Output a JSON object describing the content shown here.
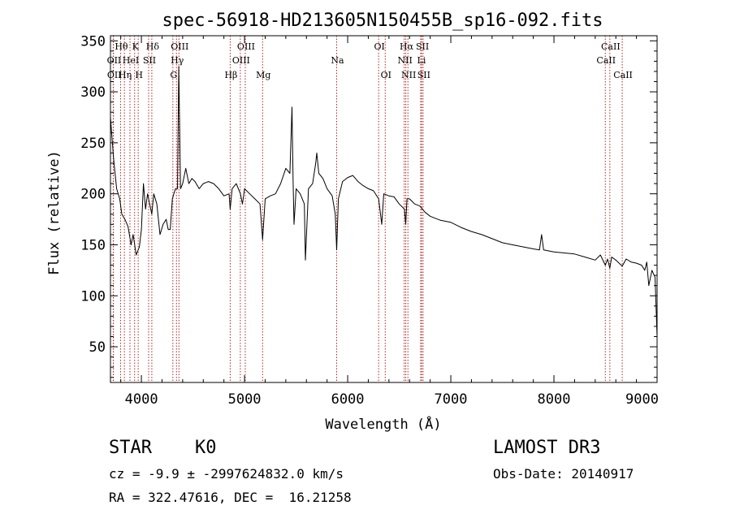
{
  "chart_data": {
    "type": "line",
    "title": "spec-56918-HD213605N150455B_sp16-092.fits",
    "xlabel": "Wavelength (Å)",
    "ylabel": "Flux (relative)",
    "xlim": [
      3700,
      9000
    ],
    "ylim": [
      15,
      355
    ],
    "xticks": [
      4000,
      5000,
      6000,
      7000,
      8000,
      9000
    ],
    "yticks": [
      50,
      100,
      150,
      200,
      250,
      300,
      350
    ],
    "series": [
      {
        "name": "flux",
        "x": [
          3700,
          3730,
          3760,
          3790,
          3810,
          3840,
          3870,
          3900,
          3920,
          3950,
          3980,
          4000,
          4020,
          4040,
          4060,
          4080,
          4101,
          4120,
          4150,
          4180,
          4210,
          4240,
          4260,
          4280,
          4300,
          4330,
          4350,
          4362,
          4380,
          4400,
          4430,
          4460,
          4490,
          4520,
          4560,
          4600,
          4650,
          4700,
          4750,
          4800,
          4850,
          4861,
          4880,
          4920,
          4960,
          4980,
          5000,
          5050,
          5100,
          5150,
          5175,
          5200,
          5250,
          5300,
          5350,
          5400,
          5440,
          5460,
          5470,
          5480,
          5500,
          5540,
          5580,
          5590,
          5620,
          5660,
          5690,
          5700,
          5720,
          5760,
          5800,
          5850,
          5880,
          5893,
          5910,
          5950,
          6000,
          6050,
          6100,
          6150,
          6200,
          6250,
          6300,
          6330,
          6350,
          6400,
          6450,
          6500,
          6550,
          6563,
          6575,
          6600,
          6650,
          6700,
          6750,
          6800,
          6900,
          7000,
          7100,
          7200,
          7300,
          7400,
          7500,
          7600,
          7700,
          7800,
          7860,
          7880,
          7900,
          8000,
          8100,
          8200,
          8300,
          8400,
          8450,
          8498,
          8520,
          8542,
          8560,
          8600,
          8662,
          8700,
          8750,
          8800,
          8850,
          8880,
          8900,
          8920,
          8950,
          8980,
          9000
        ],
        "values": [
          275,
          235,
          205,
          195,
          180,
          175,
          168,
          150,
          160,
          140,
          148,
          165,
          210,
          185,
          200,
          190,
          180,
          200,
          190,
          160,
          170,
          175,
          165,
          165,
          195,
          205,
          205,
          325,
          205,
          210,
          225,
          210,
          215,
          212,
          205,
          210,
          212,
          210,
          205,
          198,
          200,
          185,
          205,
          210,
          200,
          190,
          205,
          200,
          195,
          190,
          155,
          195,
          198,
          200,
          210,
          225,
          220,
          285,
          215,
          170,
          205,
          200,
          190,
          135,
          205,
          210,
          230,
          240,
          220,
          215,
          205,
          198,
          180,
          145,
          195,
          212,
          216,
          218,
          212,
          208,
          205,
          203,
          195,
          170,
          200,
          198,
          197,
          190,
          185,
          170,
          195,
          195,
          190,
          188,
          182,
          178,
          174,
          172,
          167,
          163,
          160,
          156,
          152,
          150,
          148,
          146,
          145,
          160,
          145,
          143,
          142,
          141,
          138,
          135,
          140,
          130,
          136,
          127,
          138,
          135,
          129,
          136,
          133,
          132,
          130,
          125,
          133,
          110,
          125,
          118,
          60
        ]
      }
    ],
    "lines": [
      {
        "label": "Hθ",
        "x": 3798,
        "row": 0
      },
      {
        "label": "OII",
        "x": 3727,
        "row": 1
      },
      {
        "label": "OII",
        "x": 3729,
        "row": 2
      },
      {
        "label": "HeI",
        "x": 3889,
        "row": 1
      },
      {
        "label": "Hη",
        "x": 3835,
        "row": 2
      },
      {
        "label": "K",
        "x": 3934,
        "row": 0
      },
      {
        "label": "SII",
        "x": 4070,
        "row": 1
      },
      {
        "label": "H",
        "x": 3969,
        "row": 2
      },
      {
        "label": "Hδ",
        "x": 4101,
        "row": 0
      },
      {
        "label": "OIII",
        "x": 4364,
        "row": 0
      },
      {
        "label": "Hγ",
        "x": 4340,
        "row": 1
      },
      {
        "label": "G",
        "x": 4305,
        "row": 2
      },
      {
        "label": "Hβ",
        "x": 4861,
        "row": 2
      },
      {
        "label": "OIII",
        "x": 5007,
        "row": 0
      },
      {
        "label": "OIII",
        "x": 4959,
        "row": 1
      },
      {
        "label": "Mg",
        "x": 5175,
        "row": 2
      },
      {
        "label": "Na",
        "x": 5893,
        "row": 1
      },
      {
        "label": "OI",
        "x": 6300,
        "row": 0
      },
      {
        "label": "OI",
        "x": 6364,
        "row": 2
      },
      {
        "label": "Hα",
        "x": 6563,
        "row": 0
      },
      {
        "label": "NII",
        "x": 6548,
        "row": 1
      },
      {
        "label": "NII",
        "x": 6584,
        "row": 2
      },
      {
        "label": "SII",
        "x": 6717,
        "row": 0
      },
      {
        "label": "Li",
        "x": 6708,
        "row": 1
      },
      {
        "label": "SII",
        "x": 6731,
        "row": 2
      },
      {
        "label": "CaII",
        "x": 8542,
        "row": 0
      },
      {
        "label": "CaII",
        "x": 8498,
        "row": 1
      },
      {
        "label": "CaII",
        "x": 8662,
        "row": 2
      }
    ]
  },
  "info": {
    "class_label": "STAR",
    "subclass": "K0",
    "survey": "LAMOST DR3",
    "cz": "cz = -9.9 ± -2997624832.0 km/s",
    "obs_date": "Obs-Date: 20140917",
    "radec": "RA = 322.47616, DEC =  16.21258"
  },
  "colors": {
    "line_marker": "#b22222",
    "spectrum": "#000000"
  }
}
